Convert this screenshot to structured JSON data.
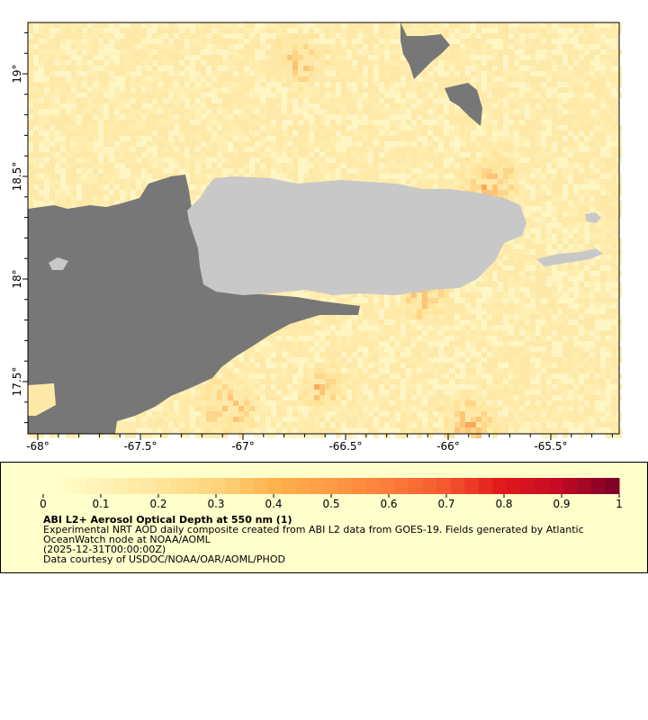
{
  "map": {
    "x_ticks": [
      "-68°",
      "-67.5°",
      "-67°",
      "-66.5°",
      "-66°",
      "-65.5°"
    ],
    "y_ticks": [
      "19°",
      "18.5°",
      "18°",
      "17.5°"
    ],
    "colors": {
      "no_data": "#777777",
      "land": "#c8c8c8",
      "frame": "#000000"
    }
  },
  "legend": {
    "tick_labels": [
      "0",
      "0.1",
      "0.2",
      "0.3",
      "0.4",
      "0.5",
      "0.6",
      "0.7",
      "0.8",
      "0.9",
      "1"
    ],
    "title": "ABI L2+ Aerosol Optical Depth at 550 nm (1)",
    "description": "Experimental NRT AOD daily composite created from ABI L2 data from GOES-19. Fields generated by Atlantic OceanWatch node at NOAA/AOML",
    "time": "(2025-12-31T00:00:00Z)",
    "credit": "Data courtesy of USDOC/NOAA/OAR/AOML/PHOD",
    "colors": [
      "#ffffcc",
      "#fff2b4",
      "#ffe498",
      "#fed37a",
      "#feb24c",
      "#fd9a44",
      "#fd7e3a",
      "#f45a2e",
      "#e31a1c",
      "#c70b24",
      "#800026"
    ],
    "range": [
      0,
      1
    ]
  }
}
